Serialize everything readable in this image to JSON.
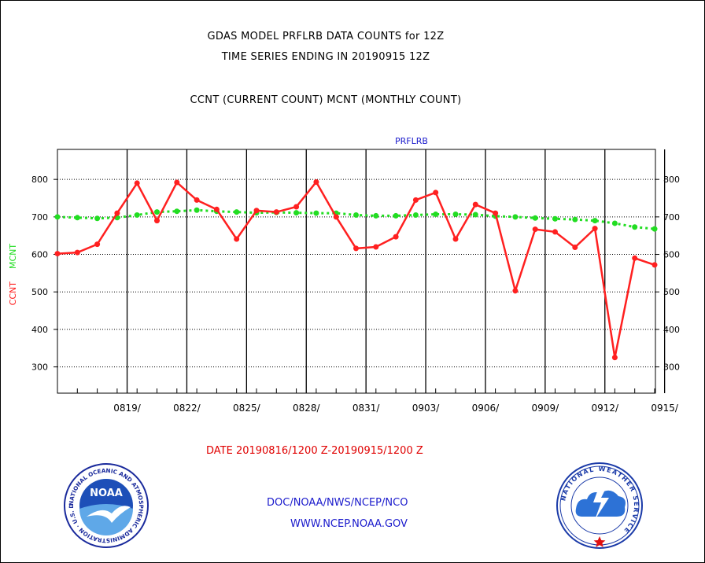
{
  "header": {
    "title_line1": "GDAS MODEL PRFLRB DATA COUNTS for 12Z",
    "title_line2": "TIME SERIES ENDING IN 20190915 12Z",
    "subtitle": "CCNT (CURRENT COUNT) MCNT (MONTHLY COUNT)"
  },
  "footer": {
    "date_range": "DATE 20190816/1200 Z-20190915/1200 Z",
    "org_path": "DOC/NOAA/NWS/NCEP/NCO",
    "website": "WWW.NCEP.NOAA.GOV"
  },
  "logos": {
    "noaa_text": "NOAA",
    "noaa_ring_text": "NATIONAL OCEANIC AND ATMOSPHERIC ADMINISTRATION · U.S. DEPARTMENT OF COMMERCE ·",
    "nws_ring_text": "NATIONAL WEATHER SERVICE"
  },
  "colors": {
    "ccnt": "#ff2020",
    "mcnt": "#22dd22",
    "plot_label": "#1a1acc",
    "grid": "#000000"
  },
  "chart_data": {
    "type": "line",
    "title": "PRFLRB",
    "ylabel_left": "CCNT",
    "ylabel_right": "MCNT",
    "ylim": [
      230,
      880
    ],
    "yticks": [
      300,
      400,
      500,
      600,
      700,
      800
    ],
    "x": [
      "0816",
      "0817",
      "0818",
      "0819",
      "0820",
      "0821",
      "0822",
      "0823",
      "0824",
      "0825",
      "0826",
      "0827",
      "0828",
      "0829",
      "0830",
      "0831",
      "0901",
      "0902",
      "0903",
      "0904",
      "0905",
      "0906",
      "0907",
      "0908",
      "0909",
      "0910",
      "0911",
      "0912",
      "0913",
      "0914",
      "0915"
    ],
    "xtick_labels": [
      {
        "date": "0819",
        "label": "0819/"
      },
      {
        "date": "0822",
        "label": "0822/"
      },
      {
        "date": "0825",
        "label": "0825/"
      },
      {
        "date": "0828",
        "label": "0828/"
      },
      {
        "date": "0831",
        "label": "0831/"
      },
      {
        "date": "0903",
        "label": "0903/"
      },
      {
        "date": "0906",
        "label": "0906/"
      },
      {
        "date": "0909",
        "label": "0909/"
      },
      {
        "date": "0912",
        "label": "0912/"
      },
      {
        "date": "0915",
        "label": "0915/"
      }
    ],
    "series": [
      {
        "name": "CCNT",
        "values": [
          602,
          605,
          627,
          710,
          790,
          690,
          792,
          745,
          720,
          641,
          717,
          713,
          727,
          793,
          700,
          616,
          620,
          647,
          745,
          765,
          641,
          733,
          710,
          503,
          667,
          660,
          619,
          669,
          325,
          590,
          572
        ]
      },
      {
        "name": "MCNT",
        "values": [
          700,
          698,
          696,
          698,
          705,
          713,
          715,
          718,
          715,
          713,
          711,
          712,
          711,
          710,
          710,
          705,
          703,
          703,
          705,
          707,
          707,
          706,
          702,
          700,
          697,
          695,
          693,
          690,
          683,
          673,
          668
        ]
      }
    ],
    "grid": true
  }
}
